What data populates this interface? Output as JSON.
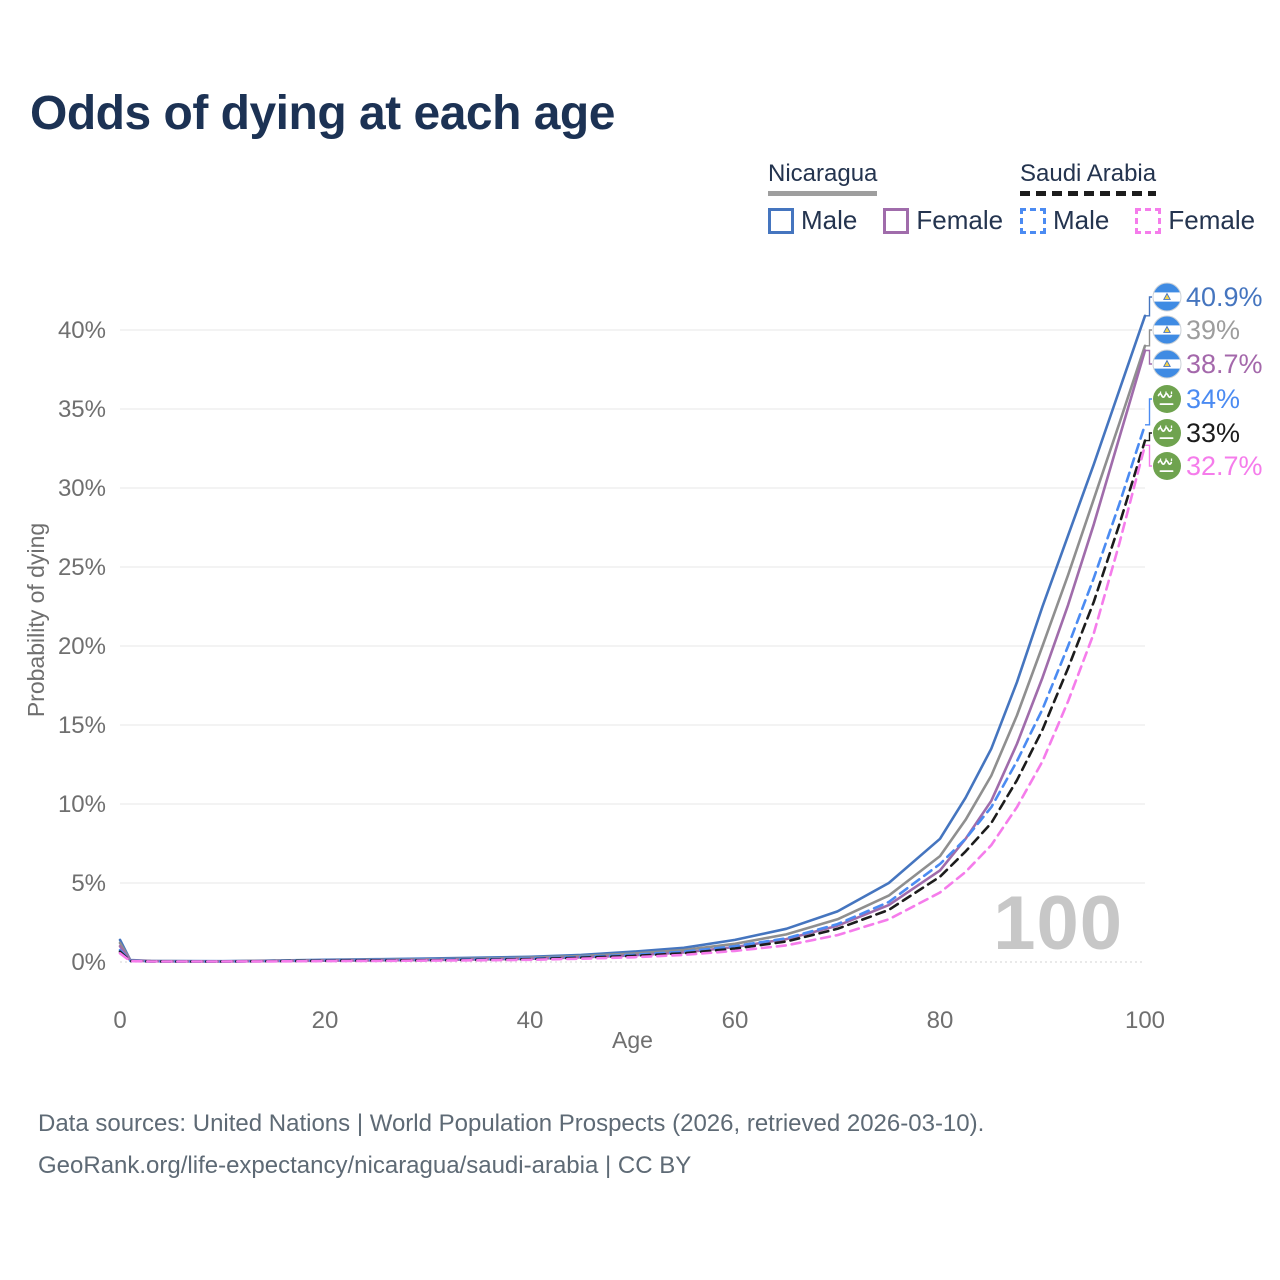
{
  "title": "Odds of dying at each age",
  "watermark": "100",
  "legend": {
    "groups": [
      {
        "country": "Nicaragua",
        "line_style": "solid",
        "underline_color": "#9e9e9e",
        "items": [
          {
            "label": "Male",
            "color": "#4575bf",
            "dashed": false
          },
          {
            "label": "Female",
            "color": "#a06cab",
            "dashed": false
          }
        ]
      },
      {
        "country": "Saudi Arabia",
        "line_style": "dashed",
        "underline_color": "#1c1c1c",
        "items": [
          {
            "label": "Male",
            "color": "#4b8bf2",
            "dashed": true
          },
          {
            "label": "Female",
            "color": "#f57ceb",
            "dashed": true
          }
        ]
      }
    ]
  },
  "footer": {
    "line1": "Data sources: United Nations | World Population Prospects (2026, retrieved 2026-03-10).",
    "line2": "GeoRank.org/life-expectancy/nicaragua/saudi-arabia | CC BY"
  },
  "chart_data": {
    "type": "line",
    "title": "Odds of dying at each age",
    "xlabel": "Age",
    "ylabel": "Probability of dying",
    "x_ticks": [
      "0",
      "20",
      "40",
      "60",
      "80",
      "100"
    ],
    "y_ticks": [
      "0%",
      "5%",
      "10%",
      "15%",
      "20%",
      "25%",
      "30%",
      "35%",
      "40%"
    ],
    "xlim": [
      0,
      100
    ],
    "ylim": [
      0,
      43
    ],
    "grid": "horizontal",
    "legend_position": "top-right",
    "ages": [
      0,
      1,
      3,
      5,
      10,
      15,
      20,
      25,
      30,
      35,
      40,
      45,
      50,
      55,
      60,
      65,
      70,
      75,
      80,
      82.5,
      85,
      87.5,
      90,
      92.5,
      95,
      97.5,
      100
    ],
    "series": [
      {
        "name": "Nicaragua Male",
        "country": "Nicaragua",
        "sex": "Male",
        "color": "#4575bf",
        "dashed": false,
        "flag": "nicaragua",
        "end_label": "40.9%",
        "label_color": "#4575bf",
        "values": [
          1.4,
          0.12,
          0.07,
          0.06,
          0.05,
          0.09,
          0.14,
          0.18,
          0.22,
          0.27,
          0.33,
          0.45,
          0.65,
          0.9,
          1.4,
          2.1,
          3.2,
          5.0,
          7.8,
          10.4,
          13.5,
          17.7,
          22.5,
          27.0,
          31.5,
          36.2,
          40.9
        ]
      },
      {
        "name": "Nicaragua Both sexes",
        "country": "Nicaragua",
        "sex": "Both",
        "color": "#8f8f8f",
        "dashed": false,
        "flag": "nicaragua",
        "end_label": "39%",
        "label_color": "#9d9d9d",
        "values": [
          1.2,
          0.1,
          0.06,
          0.05,
          0.04,
          0.08,
          0.11,
          0.14,
          0.17,
          0.21,
          0.27,
          0.38,
          0.53,
          0.75,
          1.15,
          1.75,
          2.7,
          4.2,
          6.7,
          9.0,
          11.8,
          15.6,
          20.0,
          24.5,
          29.3,
          34.1,
          39.0
        ]
      },
      {
        "name": "Nicaragua Female",
        "country": "Nicaragua",
        "sex": "Female",
        "color": "#a06cab",
        "dashed": false,
        "flag": "nicaragua",
        "end_label": "38.7%",
        "label_color": "#a468ab",
        "values": [
          1.0,
          0.09,
          0.05,
          0.04,
          0.04,
          0.06,
          0.08,
          0.1,
          0.12,
          0.16,
          0.2,
          0.3,
          0.42,
          0.6,
          0.95,
          1.45,
          2.3,
          3.6,
          5.8,
          7.8,
          10.2,
          13.8,
          18.0,
          22.6,
          27.7,
          33.2,
          38.7
        ]
      },
      {
        "name": "Saudi Arabia Male",
        "country": "Saudi Arabia",
        "sex": "Male",
        "color": "#4b8bf2",
        "dashed": true,
        "flag": "saudi-arabia",
        "end_label": "34%",
        "label_color": "#4b8bf2",
        "values": [
          0.75,
          0.07,
          0.04,
          0.04,
          0.03,
          0.06,
          0.1,
          0.12,
          0.14,
          0.18,
          0.22,
          0.32,
          0.45,
          0.65,
          1.0,
          1.5,
          2.4,
          3.8,
          6.2,
          7.8,
          9.8,
          12.7,
          16.0,
          20.0,
          24.3,
          29.0,
          34.0
        ]
      },
      {
        "name": "Saudi Arabia Both sexes",
        "country": "Saudi Arabia",
        "sex": "Both",
        "color": "#1c1c1c",
        "dashed": true,
        "flag": "saudi-arabia",
        "end_label": "33%",
        "label_color": "#1c1c1c",
        "values": [
          0.65,
          0.06,
          0.04,
          0.03,
          0.03,
          0.05,
          0.08,
          0.1,
          0.11,
          0.14,
          0.18,
          0.27,
          0.38,
          0.55,
          0.85,
          1.3,
          2.1,
          3.3,
          5.4,
          7.0,
          8.8,
          11.5,
          14.7,
          18.6,
          22.8,
          27.7,
          33.0
        ]
      },
      {
        "name": "Saudi Arabia Female",
        "country": "Saudi Arabia",
        "sex": "Female",
        "color": "#f57ceb",
        "dashed": true,
        "flag": "saudi-arabia",
        "end_label": "32.7%",
        "label_color": "#f57ceb",
        "values": [
          0.55,
          0.05,
          0.03,
          0.03,
          0.03,
          0.04,
          0.06,
          0.07,
          0.09,
          0.11,
          0.14,
          0.21,
          0.3,
          0.45,
          0.7,
          1.05,
          1.7,
          2.7,
          4.4,
          5.7,
          7.4,
          9.8,
          12.7,
          16.5,
          20.8,
          26.5,
          32.7
        ]
      }
    ]
  }
}
